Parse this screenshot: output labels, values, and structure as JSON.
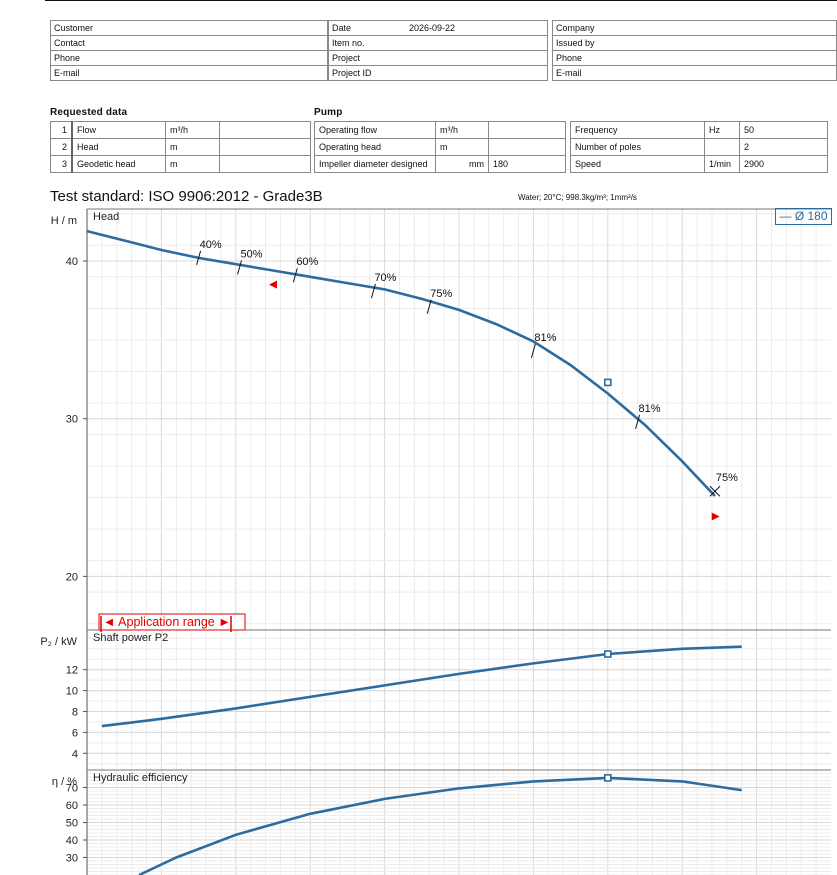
{
  "header": {
    "left": [
      {
        "label": "Customer",
        "value": ""
      },
      {
        "label": "Contact",
        "value": ""
      },
      {
        "label": "Phone",
        "value": ""
      },
      {
        "label": "E-mail",
        "value": ""
      }
    ],
    "middle": [
      {
        "label": "Date",
        "value": "2026-09-22"
      },
      {
        "label": "Item no.",
        "value": ""
      },
      {
        "label": "Project",
        "value": ""
      },
      {
        "label": "Project ID",
        "value": ""
      }
    ],
    "right": [
      {
        "label": "Company",
        "value": ""
      },
      {
        "label": "Issued by",
        "value": ""
      },
      {
        "label": "Phone",
        "value": ""
      },
      {
        "label": "E-mail",
        "value": ""
      }
    ]
  },
  "requested": {
    "title": "Requested data",
    "rows": [
      {
        "num": "1",
        "label": "Flow",
        "unit": "m³/h",
        "value": ""
      },
      {
        "num": "2",
        "label": "Head",
        "unit": "m",
        "value": ""
      },
      {
        "num": "3",
        "label": "Geodetic head",
        "unit": "m",
        "value": ""
      }
    ]
  },
  "pump": {
    "title": "Pump",
    "left": [
      {
        "label": "Operating flow",
        "unit": "m³/h",
        "value": ""
      },
      {
        "label": "Operating head",
        "unit": "m",
        "value": ""
      },
      {
        "label": "Impeller diameter designed",
        "unit": "mm",
        "value": "180"
      }
    ],
    "right": [
      {
        "label": "Frequency",
        "unit": "Hz",
        "value": "50"
      },
      {
        "label": "Number of poles",
        "unit": "",
        "value": "2"
      },
      {
        "label": "Speed",
        "unit": "1/min",
        "value": "2900"
      }
    ]
  },
  "test_standard": "Test standard: ISO 9906:2012 - Grade3B",
  "conditions": "Water; 20°C; 998.3kg/m³; 1mm²/s",
  "legend": "— Ø 180",
  "application_range": "◄ Application range ►",
  "colors": {
    "curve": "#2e6b9e",
    "marker": "#e00000"
  },
  "chart_data": [
    {
      "type": "line",
      "panel_label": "Head",
      "ylabel": "H / m",
      "ylim": [
        16.6,
        43.3
      ],
      "yticks": [
        20,
        30,
        40
      ],
      "series": [
        {
          "name": "Ø 180",
          "points": [
            [
              0,
              41.9
            ],
            [
              5,
              41.3
            ],
            [
              10,
              40.7
            ],
            [
              15,
              40.2
            ],
            [
              20,
              39.8
            ],
            [
              25,
              39.4
            ],
            [
              30,
              39.0
            ],
            [
              35,
              38.6
            ],
            [
              40,
              38.2
            ],
            [
              45,
              37.6
            ],
            [
              50,
              36.9
            ],
            [
              55,
              36.0
            ],
            [
              60,
              34.9
            ],
            [
              65,
              33.4
            ],
            [
              70,
              31.6
            ],
            [
              75,
              29.6
            ],
            [
              80,
              27.3
            ],
            [
              84.4,
              25.1
            ]
          ]
        }
      ],
      "duty_point": [
        70,
        32.3
      ],
      "efficiency_marks": [
        {
          "label": "40%",
          "x": 15,
          "y": 40.2
        },
        {
          "label": "50%",
          "x": 20.5,
          "y": 39.6
        },
        {
          "label": "60%",
          "x": 28,
          "y": 39.1
        },
        {
          "label": "70%",
          "x": 38.5,
          "y": 38.1
        },
        {
          "label": "75%",
          "x": 46,
          "y": 37.1
        },
        {
          "label": "81%",
          "x": 60,
          "y": 34.3
        },
        {
          "label": "81%",
          "x": 74,
          "y": 29.8
        },
        {
          "label": "75%",
          "x": 84.4,
          "y": 25.4
        }
      ],
      "application_range_markers": [
        [
          25,
          38.5
        ],
        [
          84.5,
          23.8
        ]
      ]
    },
    {
      "type": "line",
      "panel_label": "Shaft power P2",
      "ylabel": "P₂ / kW",
      "ylim": [
        2.4,
        15.8
      ],
      "yticks": [
        4,
        6,
        8,
        10,
        12
      ],
      "series": [
        {
          "name": "Ø 180",
          "points": [
            [
              2,
              6.6
            ],
            [
              10,
              7.3
            ],
            [
              20,
              8.3
            ],
            [
              30,
              9.4
            ],
            [
              40,
              10.5
            ],
            [
              50,
              11.6
            ],
            [
              60,
              12.6
            ],
            [
              70,
              13.5
            ],
            [
              80,
              14.0
            ],
            [
              88,
              14.2
            ]
          ]
        }
      ],
      "duty_point": [
        70,
        13.5
      ]
    },
    {
      "type": "line",
      "panel_label": "Hydraulic efficiency",
      "ylabel": "η / %",
      "ylim": [
        20,
        80
      ],
      "yticks": [
        30,
        40,
        50,
        60,
        70
      ],
      "series": [
        {
          "name": "Ø 180",
          "points": [
            [
              7,
              20
            ],
            [
              12,
              30
            ],
            [
              20,
              43
            ],
            [
              30,
              55
            ],
            [
              40,
              63.5
            ],
            [
              50,
              69.5
            ],
            [
              60,
              73.5
            ],
            [
              70,
              75.5
            ],
            [
              80,
              73.5
            ],
            [
              88,
              68.5
            ]
          ]
        }
      ],
      "duty_point": [
        70,
        75.5
      ]
    }
  ]
}
